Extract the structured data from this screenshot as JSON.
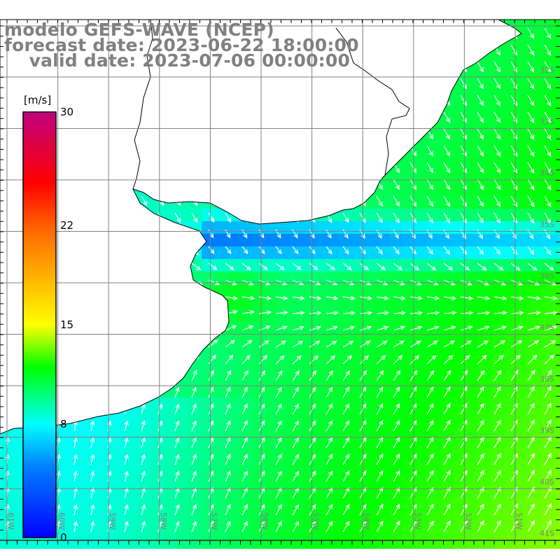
{
  "title": {
    "model": "modelo GEFS-WAVE (NCEP)",
    "forecast": "forecast date: 2023-06-22 18:00:00",
    "valid": "    valid date: 2023-07-06 00:00:00"
  },
  "colorbar": {
    "unit": "[m/s]",
    "ticks": [
      {
        "value": 30,
        "label": "30"
      },
      {
        "value": 22,
        "label": "22"
      },
      {
        "value": 15,
        "label": "15"
      },
      {
        "value": 8,
        "label": "8"
      },
      {
        "value": 0,
        "label": "0"
      }
    ],
    "colors": [
      {
        "value": 0,
        "color": "#0000ff"
      },
      {
        "value": 5,
        "color": "#0080ff"
      },
      {
        "value": 8,
        "color": "#00ffff"
      },
      {
        "value": 12,
        "color": "#00ff00"
      },
      {
        "value": 15,
        "color": "#ffff00"
      },
      {
        "value": 22,
        "color": "#ff6000"
      },
      {
        "value": 25,
        "color": "#ff0000"
      },
      {
        "value": 30,
        "color": "#c0007f"
      }
    ]
  },
  "grid": {
    "lat_labels": [
      "32S",
      "33S",
      "34S",
      "35S",
      "36S",
      "37S",
      "38S",
      "39S",
      "40S",
      "41S"
    ],
    "lon_labels": [
      "61W",
      "60W",
      "59W",
      "58W",
      "57W",
      "56W",
      "55W",
      "54W",
      "53W",
      "52W",
      "51W"
    ]
  }
}
